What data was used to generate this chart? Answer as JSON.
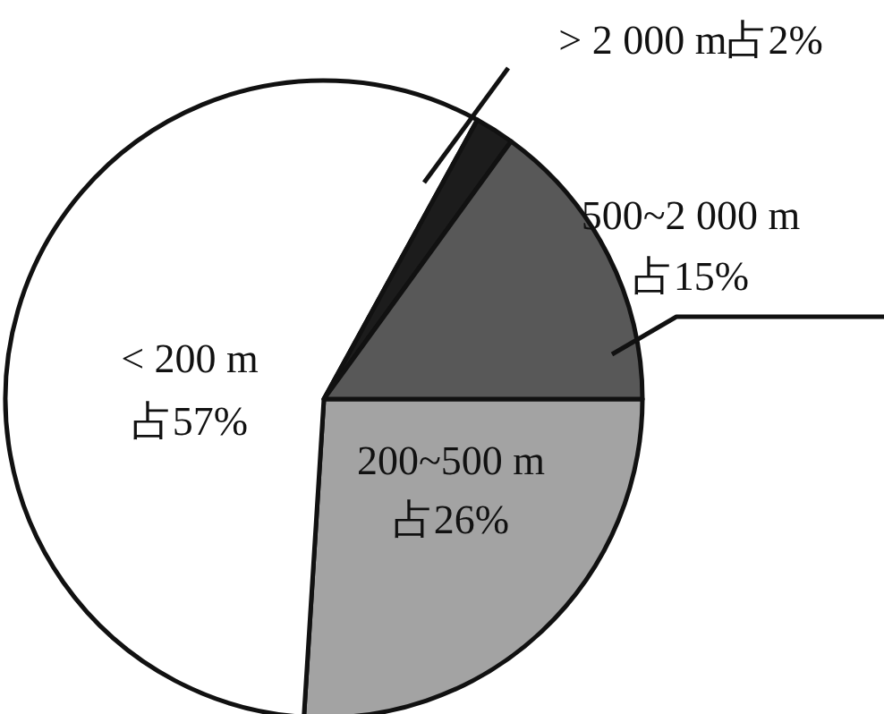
{
  "chart_data": {
    "type": "pie",
    "categories": [
      "200~500 m",
      "< 200 m",
      "> 2 000 m",
      "500~2 000 m"
    ],
    "values": [
      26,
      57,
      2,
      15
    ],
    "value_labels": [
      "占26%",
      "占57%",
      "占2%",
      "占15%"
    ],
    "colors": [
      "#a3a3a3",
      "#ffffff",
      "#1c1c1c",
      "#585858"
    ]
  }
}
